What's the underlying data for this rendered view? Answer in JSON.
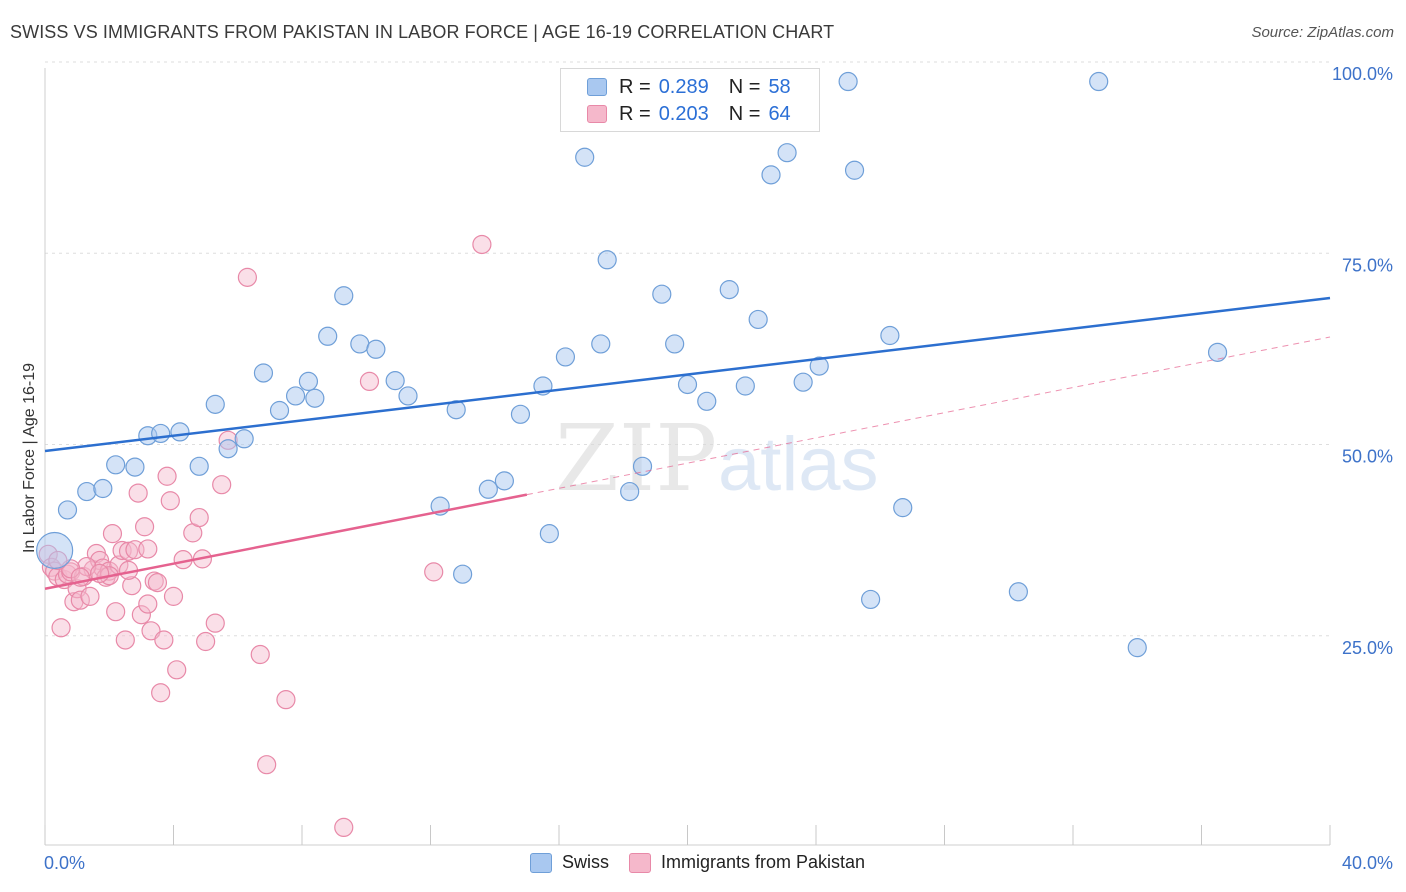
{
  "header": {
    "title": "SWISS VS IMMIGRANTS FROM PAKISTAN IN LABOR FORCE | AGE 16-19 CORRELATION CHART",
    "source": "Source: ZipAtlas.com"
  },
  "watermark": {
    "zip": "ZIP",
    "atlas": "atlas"
  },
  "legend": {
    "rows": [
      {
        "r_label": "R =",
        "r_value": "0.289",
        "n_label": "N =",
        "n_value": "58"
      },
      {
        "r_label": "R =",
        "r_value": "0.203",
        "n_label": "N =",
        "n_value": "64"
      }
    ]
  },
  "bottom_legend": {
    "swiss": "Swiss",
    "pakistan": "Immigrants from Pakistan"
  },
  "axes": {
    "y_title": "In Labor Force | Age 16-19",
    "x_min_label": "0.0%",
    "x_max_label": "40.0%",
    "y_ticks": [
      "100.0%",
      "75.0%",
      "50.0%",
      "25.0%"
    ]
  },
  "colors": {
    "swiss_fill": "#a9c8f0",
    "swiss_stroke": "#6f9fd8",
    "swiss_line": "#2c6fcf",
    "pak_fill": "#f5b8cb",
    "pak_stroke": "#e889a8",
    "pak_line": "#e5628f",
    "tick_label": "#3d72c9"
  },
  "chart_data": {
    "type": "scatter",
    "title": "SWISS VS IMMIGRANTS FROM PAKISTAN IN LABOR FORCE | AGE 16-19 CORRELATION CHART",
    "xlabel": "",
    "ylabel": "In Labor Force | Age 16-19",
    "xlim": [
      0,
      40
    ],
    "ylim": [
      0,
      100
    ],
    "grid": true,
    "legend_position": "top-center",
    "series": [
      {
        "name": "Swiss",
        "R": 0.289,
        "N": 58,
        "trend": {
          "x": [
            0,
            40
          ],
          "y": [
            51.5,
            71.5
          ]
        },
        "points": [
          [
            0.3,
            38.5
          ],
          [
            0.7,
            43.8
          ],
          [
            1.3,
            46.2
          ],
          [
            1.8,
            46.6
          ],
          [
            2.2,
            49.7
          ],
          [
            2.8,
            49.4
          ],
          [
            3.2,
            53.5
          ],
          [
            3.6,
            53.8
          ],
          [
            4.2,
            54.0
          ],
          [
            4.8,
            49.5
          ],
          [
            5.3,
            57.6
          ],
          [
            5.7,
            51.8
          ],
          [
            6.2,
            53.1
          ],
          [
            6.8,
            61.7
          ],
          [
            7.3,
            56.8
          ],
          [
            7.8,
            58.7
          ],
          [
            8.2,
            60.6
          ],
          [
            8.8,
            66.5
          ],
          [
            9.3,
            71.8
          ],
          [
            9.8,
            65.5
          ],
          [
            10.3,
            64.8
          ],
          [
            10.9,
            60.7
          ],
          [
            11.3,
            58.7
          ],
          [
            12.3,
            44.3
          ],
          [
            12.8,
            56.9
          ],
          [
            13.0,
            35.4
          ],
          [
            13.8,
            46.5
          ],
          [
            14.3,
            47.6
          ],
          [
            14.8,
            56.3
          ],
          [
            15.5,
            60.0
          ],
          [
            15.7,
            40.7
          ],
          [
            16.2,
            63.8
          ],
          [
            16.8,
            89.9
          ],
          [
            17.3,
            65.5
          ],
          [
            17.5,
            76.5
          ],
          [
            18.2,
            46.2
          ],
          [
            18.6,
            49.5
          ],
          [
            19.2,
            72.0
          ],
          [
            19.6,
            65.5
          ],
          [
            20.0,
            60.2
          ],
          [
            20.6,
            58.0
          ],
          [
            21.3,
            72.6
          ],
          [
            21.8,
            60.0
          ],
          [
            22.2,
            68.7
          ],
          [
            22.6,
            87.6
          ],
          [
            23.1,
            90.5
          ],
          [
            23.6,
            60.5
          ],
          [
            24.1,
            62.6
          ],
          [
            25.0,
            99.8
          ],
          [
            25.2,
            88.2
          ],
          [
            25.7,
            32.1
          ],
          [
            26.3,
            66.6
          ],
          [
            26.7,
            44.1
          ],
          [
            30.3,
            33.1
          ],
          [
            32.8,
            99.8
          ],
          [
            34.0,
            25.8
          ],
          [
            36.5,
            64.4
          ],
          [
            8.4,
            58.4
          ]
        ]
      },
      {
        "name": "Immigrants from Pakistan",
        "R": 0.203,
        "N": 64,
        "trend": {
          "x": [
            0,
            15
          ],
          "y": [
            33.5,
            45.8
          ]
        },
        "trend_dashed_extension": {
          "x": [
            15,
            40
          ],
          "y": [
            45.8,
            66.4
          ]
        },
        "points": [
          [
            0.1,
            38.0
          ],
          [
            0.2,
            36.3
          ],
          [
            0.3,
            35.8
          ],
          [
            0.4,
            35.1
          ],
          [
            0.5,
            28.4
          ],
          [
            0.6,
            34.7
          ],
          [
            0.7,
            35.4
          ],
          [
            0.8,
            35.7
          ],
          [
            0.9,
            31.8
          ],
          [
            1.0,
            33.5
          ],
          [
            1.1,
            32.0
          ],
          [
            1.2,
            35.1
          ],
          [
            1.4,
            32.5
          ],
          [
            1.5,
            36.0
          ],
          [
            1.6,
            38.1
          ],
          [
            1.7,
            37.2
          ],
          [
            1.8,
            36.2
          ],
          [
            1.9,
            35.0
          ],
          [
            2.0,
            35.8
          ],
          [
            2.1,
            40.7
          ],
          [
            2.2,
            30.5
          ],
          [
            2.3,
            36.6
          ],
          [
            2.4,
            38.5
          ],
          [
            2.5,
            26.8
          ],
          [
            2.6,
            38.4
          ],
          [
            2.7,
            33.9
          ],
          [
            2.8,
            38.6
          ],
          [
            2.9,
            46.0
          ],
          [
            3.0,
            30.1
          ],
          [
            3.1,
            41.6
          ],
          [
            3.2,
            31.5
          ],
          [
            3.3,
            28.0
          ],
          [
            3.4,
            34.5
          ],
          [
            3.5,
            34.3
          ],
          [
            3.6,
            19.9
          ],
          [
            3.7,
            26.8
          ],
          [
            3.8,
            48.2
          ],
          [
            3.9,
            45.0
          ],
          [
            4.0,
            32.5
          ],
          [
            4.1,
            22.9
          ],
          [
            4.3,
            37.3
          ],
          [
            4.6,
            40.8
          ],
          [
            4.8,
            42.8
          ],
          [
            4.9,
            37.4
          ],
          [
            5.0,
            26.6
          ],
          [
            5.3,
            29.0
          ],
          [
            5.5,
            47.1
          ],
          [
            5.7,
            52.9
          ],
          [
            6.3,
            74.2
          ],
          [
            6.7,
            24.9
          ],
          [
            6.9,
            10.5
          ],
          [
            7.5,
            19.0
          ],
          [
            9.3,
            2.3
          ],
          [
            10.1,
            60.6
          ],
          [
            12.1,
            35.7
          ],
          [
            13.6,
            78.5
          ],
          [
            3.2,
            38.7
          ],
          [
            1.3,
            36.4
          ],
          [
            2.0,
            35.2
          ],
          [
            0.8,
            36.1
          ],
          [
            1.7,
            35.5
          ],
          [
            2.6,
            35.9
          ],
          [
            0.4,
            37.2
          ],
          [
            1.1,
            35.0
          ]
        ]
      }
    ]
  }
}
